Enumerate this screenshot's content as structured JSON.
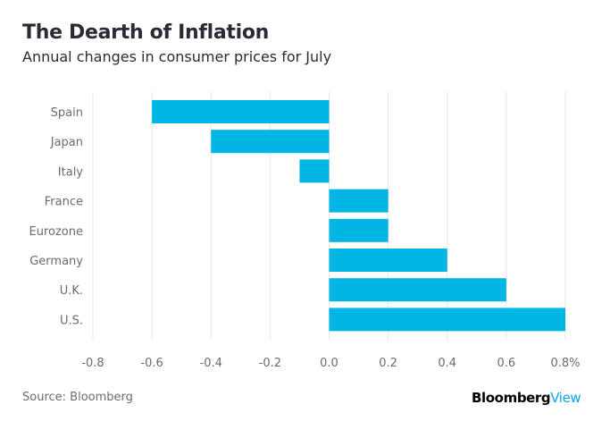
{
  "chart_data": {
    "type": "bar",
    "orientation": "horizontal",
    "title": "The Dearth of Inflation",
    "subtitle": "Annual changes in consumer prices for July",
    "categories": [
      "Spain",
      "Japan",
      "Italy",
      "France",
      "Eurozone",
      "Germany",
      "U.K.",
      "U.S."
    ],
    "values": [
      -0.6,
      -0.4,
      -0.1,
      0.2,
      0.2,
      0.4,
      0.6,
      0.8
    ],
    "xlim": [
      -0.8,
      0.8
    ],
    "xticks": [
      -0.8,
      -0.6,
      -0.4,
      -0.2,
      0.0,
      0.2,
      0.4,
      0.6,
      0.8
    ],
    "xtick_labels": [
      "-0.8",
      "-0.6",
      "-0.4",
      "-0.2",
      "0.0",
      "0.2",
      "0.4",
      "0.6",
      "0.8%"
    ],
    "grid": "vertical",
    "bar_color": "#00b6e4"
  },
  "footer": {
    "source": "Source: Bloomberg",
    "logo_bold": "Bloomberg",
    "logo_light": "View"
  }
}
